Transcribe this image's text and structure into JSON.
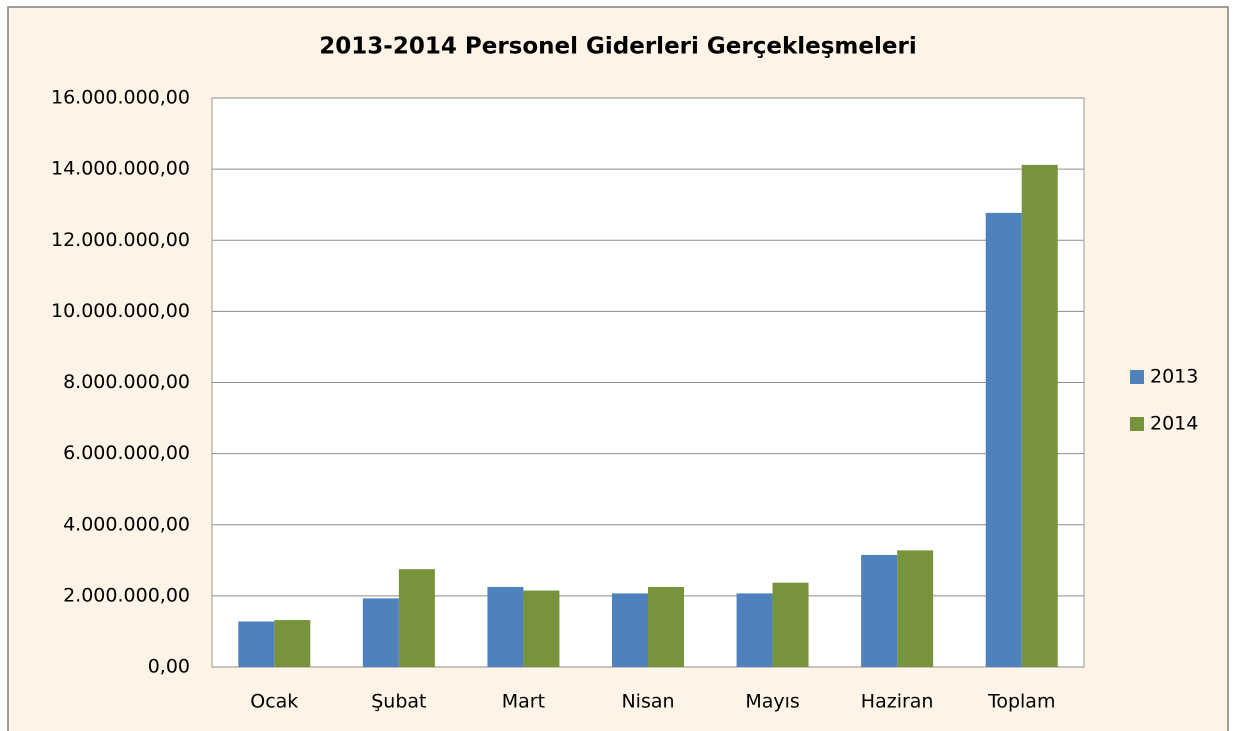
{
  "chart_data": {
    "type": "bar",
    "title": "2013-2014 Personel Giderleri Gerçekleşmeleri",
    "categories": [
      "Ocak",
      "Şubat",
      "Mart",
      "Nisan",
      "Mayıs",
      "Haziran",
      "Toplam"
    ],
    "series": [
      {
        "name": "2013",
        "color": "#4f81bd",
        "values": [
          1280000,
          1930000,
          2250000,
          2070000,
          2070000,
          3150000,
          12770000
        ]
      },
      {
        "name": "2014",
        "color": "#77933c",
        "values": [
          1320000,
          2750000,
          2150000,
          2250000,
          2370000,
          3280000,
          14120000
        ]
      }
    ],
    "ylim": [
      0,
      16000000
    ],
    "yticks": [
      {
        "value": 0,
        "label": "0,00"
      },
      {
        "value": 2000000,
        "label": "2.000.000,00"
      },
      {
        "value": 4000000,
        "label": "4.000.000,00"
      },
      {
        "value": 6000000,
        "label": "6.000.000,00"
      },
      {
        "value": 8000000,
        "label": "8.000.000,00"
      },
      {
        "value": 10000000,
        "label": "10.000.000,00"
      },
      {
        "value": 12000000,
        "label": "12.000.000,00"
      },
      {
        "value": 14000000,
        "label": "14.000.000,00"
      },
      {
        "value": 16000000,
        "label": "16.000.000,00"
      }
    ],
    "grid": true,
    "legend": "right"
  }
}
